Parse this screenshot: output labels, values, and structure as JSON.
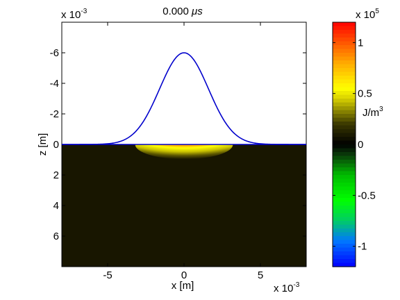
{
  "chart_data": {
    "type": "heatmap",
    "title": "0.000 μs",
    "title_prefix": "0.000 ",
    "title_unit": "μs",
    "xlabel": "x [m]",
    "ylabel": "z [m]",
    "x_exponent_base": "x 10",
    "x_exponent_power": "-3",
    "y_exponent_base": "x 10",
    "y_exponent_power": "-3",
    "xlim": [
      -8,
      8
    ],
    "ylim": [
      -8,
      8
    ],
    "y_axis_reversed": true,
    "x_ticks": [
      -5,
      0,
      5
    ],
    "x_tick_labels": [
      "-5",
      "0",
      "5"
    ],
    "y_ticks": [
      -6,
      -4,
      -2,
      0,
      2,
      4,
      6
    ],
    "y_tick_labels": [
      "-6",
      "-4",
      "-2",
      "0",
      "2",
      "4",
      "6"
    ],
    "pulse_curve": {
      "color": "#0000cc",
      "shape": "gaussian",
      "peak_x": 0,
      "peak_z": -6.0,
      "sigma": 1.6
    },
    "field_background_color": "#181600",
    "hotspot": {
      "center_x": 0,
      "center_z": 0.05,
      "half_width": 3.2,
      "depth": 0.6,
      "colors": [
        "#181600",
        "#5a5400",
        "#c8c000",
        "#ffff00",
        "#ff6000",
        "#ff0000"
      ]
    },
    "colorbar": {
      "label": "J/m",
      "label_power": "3",
      "exponent_base": "x 10",
      "exponent_power": "5",
      "range": [
        -1.2,
        1.2
      ],
      "ticks": [
        -1,
        -0.5,
        0,
        0.5,
        1
      ],
      "tick_labels": [
        "-1",
        "-0.5",
        "0",
        "0.5",
        "1"
      ],
      "stops": [
        {
          "v": -1.2,
          "c": "#0000ff"
        },
        {
          "v": -0.95,
          "c": "#0077ff"
        },
        {
          "v": -0.75,
          "c": "#00cc66"
        },
        {
          "v": -0.55,
          "c": "#00ff00"
        },
        {
          "v": -0.3,
          "c": "#00bb00"
        },
        {
          "v": -0.1,
          "c": "#0a3a0a"
        },
        {
          "v": 0.0,
          "c": "#000000"
        },
        {
          "v": 0.2,
          "c": "#3a3800"
        },
        {
          "v": 0.45,
          "c": "#d8d000"
        },
        {
          "v": 0.55,
          "c": "#ffff00"
        },
        {
          "v": 0.8,
          "c": "#ffaa00"
        },
        {
          "v": 1.2,
          "c": "#ff0000"
        }
      ]
    }
  }
}
